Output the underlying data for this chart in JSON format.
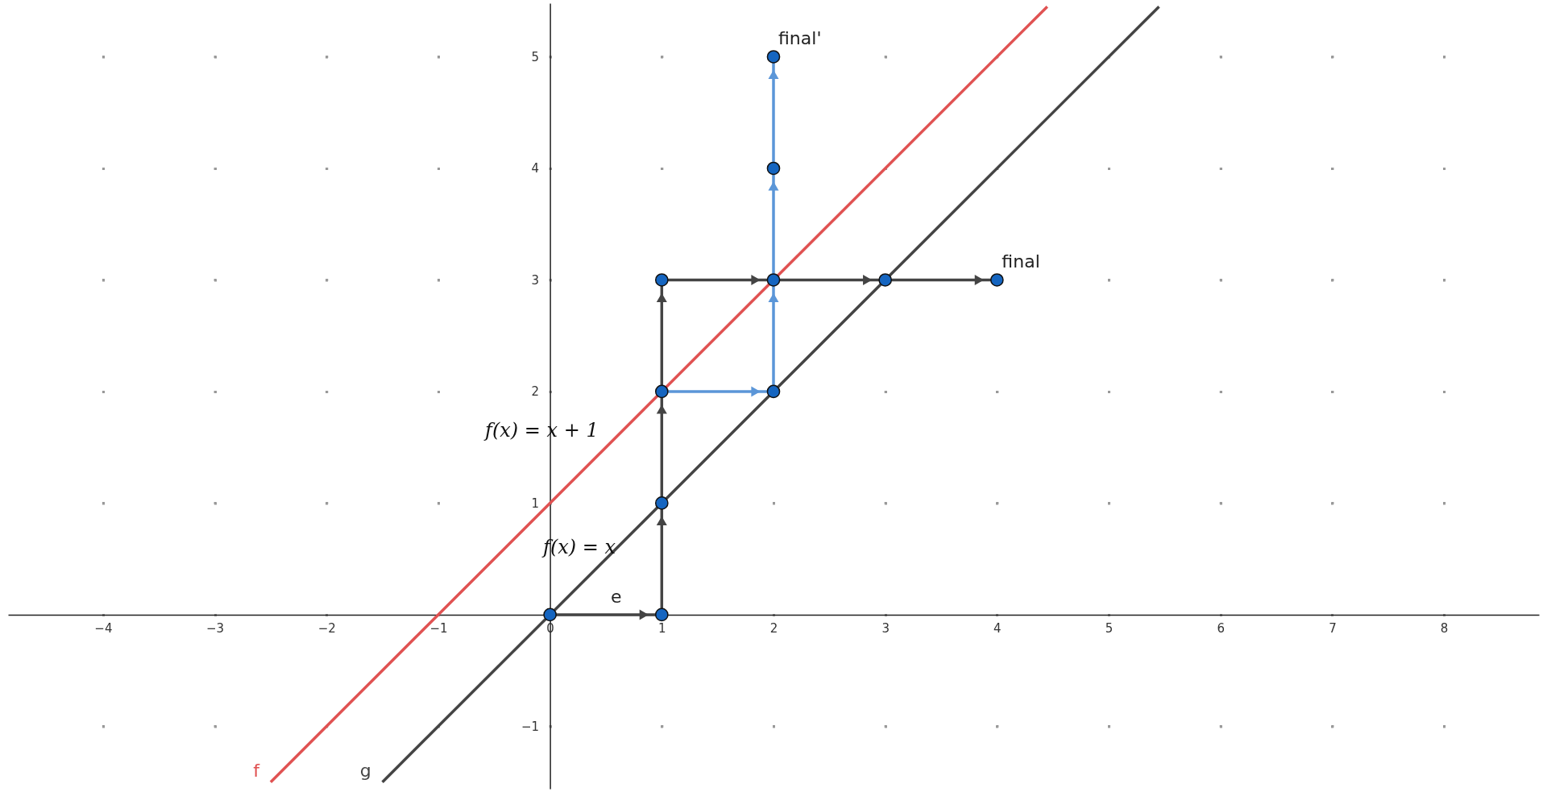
{
  "chart_data": {
    "type": "line",
    "xlim": [
      -4.85,
      8.85
    ],
    "ylim": [
      -1.56,
      5.48
    ],
    "xticks": [
      -4,
      -3,
      -2,
      -1,
      0,
      1,
      2,
      3,
      4,
      5,
      6,
      7,
      8
    ],
    "yticks": [
      -1,
      1,
      2,
      3,
      4,
      5
    ],
    "grid": true,
    "series": [
      {
        "name": "f",
        "color": "#e05252",
        "x": [
          -2.5,
          4.45
        ],
        "values": [
          -1.5,
          5.45
        ]
      },
      {
        "name": "g",
        "color": "#444444",
        "x": [
          -1.5,
          5.45
        ],
        "values": [
          -1.5,
          5.45
        ]
      },
      {
        "type": "line",
        "color": "#444444",
        "x": [
          0,
          1,
          1,
          1,
          1,
          2,
          3,
          4
        ],
        "values": [
          0,
          0,
          1,
          2,
          3,
          3,
          3,
          3
        ]
      },
      {
        "type": "line",
        "color": "#5b96d8",
        "x": [
          1,
          2,
          2,
          2,
          2
        ],
        "values": [
          2,
          2,
          3,
          4,
          5
        ]
      },
      {
        "type": "scatter",
        "color": "#1565c0",
        "marker": "circle",
        "x": [
          0,
          1,
          1,
          1,
          1,
          2,
          3,
          4,
          2,
          2,
          2
        ],
        "values": [
          0,
          0,
          1,
          2,
          3,
          3,
          3,
          3,
          2,
          4,
          5
        ]
      }
    ],
    "annotations": [
      {
        "text": "final",
        "x": 4,
        "y": 3
      },
      {
        "text": "final'",
        "x": 2,
        "y": 5
      },
      {
        "text": "e",
        "x": 0.5,
        "y": 0
      },
      "f(x) = x + 1",
      "f(x) = x"
    ]
  }
}
